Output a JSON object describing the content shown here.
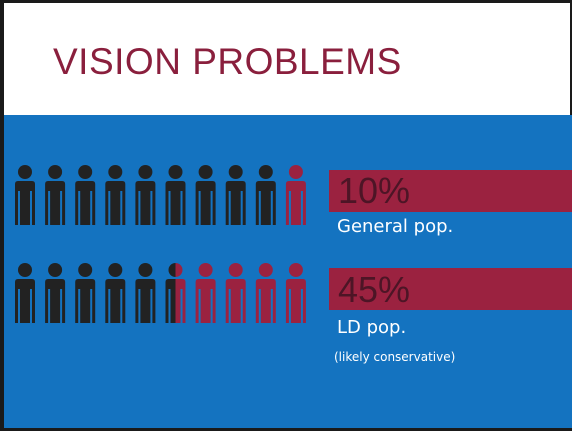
{
  "slide": {
    "title": "VISION PROBLEMS",
    "colors": {
      "title_text": "#8a1f3d",
      "body_background": "#1473c0",
      "bar": "#9b2240",
      "percent_text": "#4d1526",
      "person_dark": "#222222",
      "person_highlight": "#9b2240"
    }
  },
  "rows": [
    {
      "percent": "10%",
      "label": "General pop.",
      "note": "",
      "highlight_fraction": 0.1,
      "icon": "person-icon",
      "icon_count": 10
    },
    {
      "percent": "45%",
      "label": "LD pop.",
      "note": "(likely conservative)",
      "highlight_fraction": 0.45,
      "icon": "person-icon",
      "icon_count": 10
    }
  ]
}
